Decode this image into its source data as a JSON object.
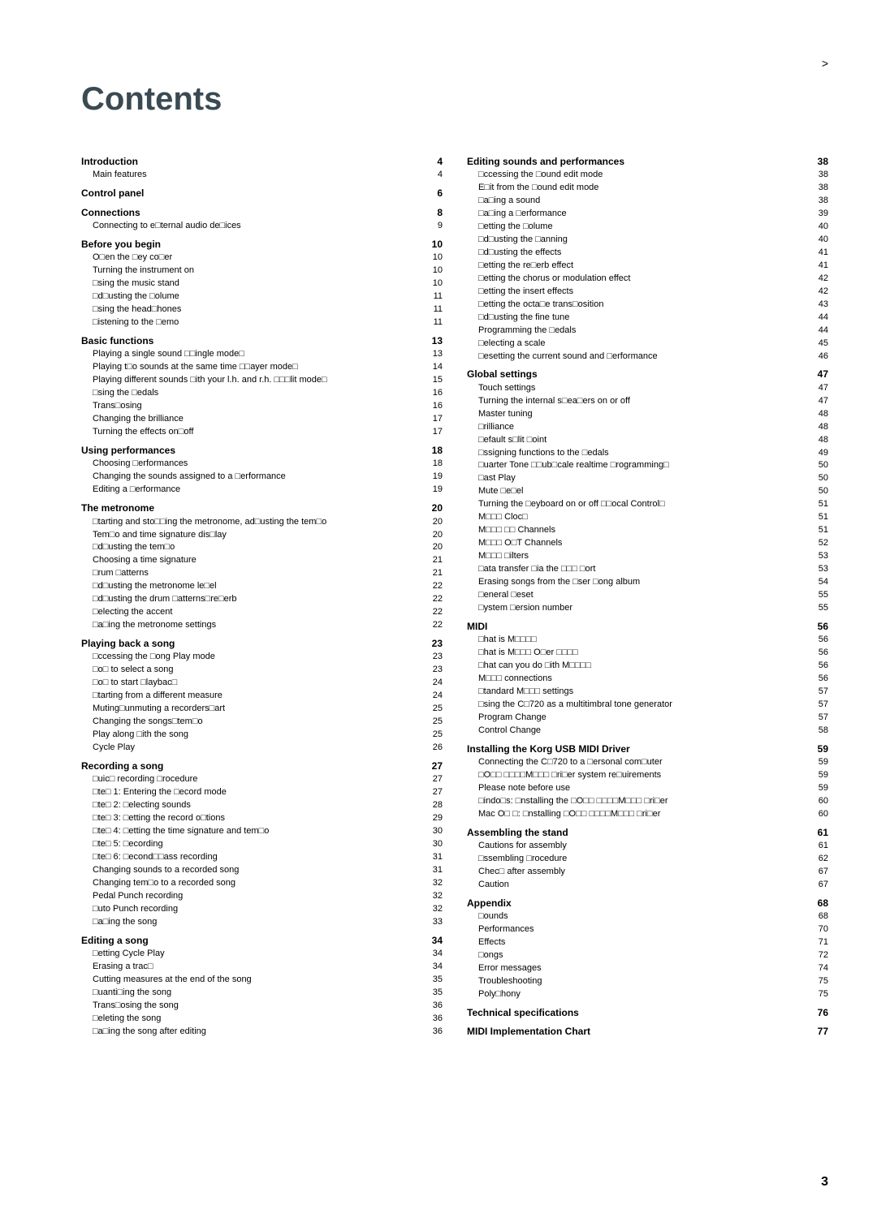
{
  "title": "Contents",
  "bracket": ">",
  "pageNumber": "3",
  "colors": {
    "heading": "#3a4a52",
    "text": "#000000",
    "background": "#ffffff"
  },
  "columns": [
    [
      {
        "t": "h",
        "l": "Introduction",
        "p": "4"
      },
      {
        "t": "s",
        "l": "Main features",
        "p": "4"
      },
      {
        "t": "h",
        "l": "Control panel",
        "p": "6"
      },
      {
        "t": "h",
        "l": "Connections",
        "p": "8"
      },
      {
        "t": "s",
        "l": "Connecting to e□ternal audio de□ices",
        "p": "9"
      },
      {
        "t": "h",
        "l": "Before you begin",
        "p": "10"
      },
      {
        "t": "s",
        "l": "O□en the □ey co□er",
        "p": "10"
      },
      {
        "t": "s",
        "l": "Turning the instrument on",
        "p": "10"
      },
      {
        "t": "s",
        "l": "□sing the music stand",
        "p": "10"
      },
      {
        "t": "s",
        "l": "□d□usting the □olume",
        "p": "11"
      },
      {
        "t": "s",
        "l": "□sing the head□hones",
        "p": "11"
      },
      {
        "t": "s",
        "l": "□istening to the □emo",
        "p": "11"
      },
      {
        "t": "h",
        "l": "Basic functions",
        "p": "13"
      },
      {
        "t": "s",
        "l": "Playing a single sound □□ingle mode□",
        "p": "13"
      },
      {
        "t": "s",
        "l": "Playing t□o sounds at the same time □□ayer mode□",
        "p": "14"
      },
      {
        "t": "s",
        "l": "Playing different sounds □ith your l.h. and r.h. □□□lit mode□",
        "p": "15"
      },
      {
        "t": "s",
        "l": "□sing the □edals",
        "p": "16"
      },
      {
        "t": "s",
        "l": "Trans□osing",
        "p": "16"
      },
      {
        "t": "s",
        "l": "Changing the brilliance",
        "p": "17"
      },
      {
        "t": "s",
        "l": "Turning the effects on□off",
        "p": "17"
      },
      {
        "t": "h",
        "l": "Using performances",
        "p": "18"
      },
      {
        "t": "s",
        "l": "Choosing □erformances",
        "p": "18"
      },
      {
        "t": "s",
        "l": "Changing the sounds assigned to a □erformance",
        "p": "19"
      },
      {
        "t": "s",
        "l": "Editing a □erformance",
        "p": "19"
      },
      {
        "t": "h",
        "l": "The metronome",
        "p": "20"
      },
      {
        "t": "s",
        "l": "□tarting and sto□□ing the metronome, ad□usting the tem□o",
        "p": "20"
      },
      {
        "t": "s",
        "l": "Tem□o and time signature dis□lay",
        "p": "20"
      },
      {
        "t": "s",
        "l": "□d□usting the tem□o",
        "p": "20"
      },
      {
        "t": "s",
        "l": "Choosing a time signature",
        "p": "21"
      },
      {
        "t": "s",
        "l": "□rum □atterns",
        "p": "21"
      },
      {
        "t": "s",
        "l": "□d□usting the metronome le□el",
        "p": "22"
      },
      {
        "t": "s",
        "l": "□d□usting the drum □atterns□re□erb",
        "p": "22"
      },
      {
        "t": "s",
        "l": "□electing the accent",
        "p": "22"
      },
      {
        "t": "s",
        "l": "□a□ing the metronome settings",
        "p": "22"
      },
      {
        "t": "h",
        "l": "Playing back a song",
        "p": "23"
      },
      {
        "t": "s",
        "l": "□ccessing the □ong Play mode",
        "p": "23"
      },
      {
        "t": "s",
        "l": "□o□ to select a song",
        "p": "23"
      },
      {
        "t": "s",
        "l": "□o□ to start □laybac□",
        "p": "24"
      },
      {
        "t": "s",
        "l": "□tarting from a different measure",
        "p": "24"
      },
      {
        "t": "s",
        "l": "Muting□unmuting a recorders□art",
        "p": "25"
      },
      {
        "t": "s",
        "l": "Changing the songs□tem□o",
        "p": "25"
      },
      {
        "t": "s",
        "l": "Play along □ith the song",
        "p": "25"
      },
      {
        "t": "s",
        "l": "Cycle Play",
        "p": "26"
      },
      {
        "t": "h",
        "l": "Recording a song",
        "p": "27"
      },
      {
        "t": "s",
        "l": "□uic□ recording □rocedure",
        "p": "27"
      },
      {
        "t": "s",
        "l": "□te□ 1: Entering the □ecord mode",
        "p": "27"
      },
      {
        "t": "s",
        "l": "□te□ 2: □electing sounds",
        "p": "28"
      },
      {
        "t": "s",
        "l": "□te□ 3: □etting the record o□tions",
        "p": "29"
      },
      {
        "t": "s",
        "l": "□te□ 4: □etting the time signature and tem□o",
        "p": "30"
      },
      {
        "t": "s",
        "l": "□te□ 5: □ecording",
        "p": "30"
      },
      {
        "t": "s",
        "l": "□te□ 6: □econd□□ass recording",
        "p": "31"
      },
      {
        "t": "s",
        "l": "Changing sounds to a recorded song",
        "p": "31"
      },
      {
        "t": "s",
        "l": "Changing tem□o to a recorded song",
        "p": "32"
      },
      {
        "t": "s",
        "l": "Pedal Punch recording",
        "p": "32"
      },
      {
        "t": "s",
        "l": "□uto Punch recording",
        "p": "32"
      },
      {
        "t": "s",
        "l": "□a□ing the song",
        "p": "33"
      },
      {
        "t": "h",
        "l": "Editing a song",
        "p": "34"
      },
      {
        "t": "s",
        "l": "□etting Cycle Play",
        "p": "34"
      },
      {
        "t": "s",
        "l": "Erasing a trac□",
        "p": "34"
      },
      {
        "t": "s",
        "l": "Cutting measures at the end of the song",
        "p": "35"
      },
      {
        "t": "s",
        "l": "□uanti□ing the song",
        "p": "35"
      },
      {
        "t": "s",
        "l": "Trans□osing the song",
        "p": "36"
      },
      {
        "t": "s",
        "l": "□eleting the song",
        "p": "36"
      },
      {
        "t": "s",
        "l": "□a□ing the song after editing",
        "p": "36"
      }
    ],
    [
      {
        "t": "h",
        "l": "Editing sounds and performances",
        "p": "38"
      },
      {
        "t": "s",
        "l": "□ccessing the □ound edit mode",
        "p": "38"
      },
      {
        "t": "s",
        "l": "E□it from the □ound edit mode",
        "p": "38"
      },
      {
        "t": "s",
        "l": "□a□ing a sound",
        "p": "38"
      },
      {
        "t": "s",
        "l": "□a□ing a □erformance",
        "p": "39"
      },
      {
        "t": "s",
        "l": "□etting the □olume",
        "p": "40"
      },
      {
        "t": "s",
        "l": "□d□usting the □anning",
        "p": "40"
      },
      {
        "t": "s",
        "l": "□d□usting the effects",
        "p": "41"
      },
      {
        "t": "s",
        "l": "□etting the re□erb effect",
        "p": "41"
      },
      {
        "t": "s",
        "l": "□etting the chorus or modulation effect",
        "p": "42"
      },
      {
        "t": "s",
        "l": "□etting the insert effects",
        "p": "42"
      },
      {
        "t": "s",
        "l": "□etting the octa□e trans□osition",
        "p": "43"
      },
      {
        "t": "s",
        "l": "□d□usting the fine tune",
        "p": "44"
      },
      {
        "t": "s",
        "l": "Programming the □edals",
        "p": "44"
      },
      {
        "t": "s",
        "l": "□electing a scale",
        "p": "45"
      },
      {
        "t": "s",
        "l": "□esetting the current sound and □erformance",
        "p": "46"
      },
      {
        "t": "h",
        "l": "Global settings",
        "p": "47"
      },
      {
        "t": "s",
        "l": "Touch settings",
        "p": "47"
      },
      {
        "t": "s",
        "l": "Turning the internal s□ea□ers on or off",
        "p": "47"
      },
      {
        "t": "s",
        "l": "Master tuning",
        "p": "48"
      },
      {
        "t": "s",
        "l": "□rilliance",
        "p": "48"
      },
      {
        "t": "s",
        "l": "□efault s□lit □oint",
        "p": "48"
      },
      {
        "t": "s",
        "l": "□ssigning functions to the □edals",
        "p": "49"
      },
      {
        "t": "s",
        "l": "□uarter Tone □□ub□cale realtime □rogramming□",
        "p": "50"
      },
      {
        "t": "s",
        "l": "□ast Play",
        "p": "50"
      },
      {
        "t": "s",
        "l": "Mute □e□el",
        "p": "50"
      },
      {
        "t": "s",
        "l": "Turning the □eyboard on or off □□ocal Control□",
        "p": "51"
      },
      {
        "t": "s",
        "l": "M□□□ Cloc□",
        "p": "51"
      },
      {
        "t": "s",
        "l": "M□□□ □□ Channels",
        "p": "51"
      },
      {
        "t": "s",
        "l": "M□□□ O□T Channels",
        "p": "52"
      },
      {
        "t": "s",
        "l": "M□□□ □ilters",
        "p": "53"
      },
      {
        "t": "s",
        "l": "□ata transfer □ia the □□□ □ort",
        "p": "53"
      },
      {
        "t": "s",
        "l": "Erasing songs from the □ser □ong album",
        "p": "54"
      },
      {
        "t": "s",
        "l": "□eneral □eset",
        "p": "55"
      },
      {
        "t": "s",
        "l": "□ystem □ersion number",
        "p": "55"
      },
      {
        "t": "h",
        "l": "MIDI",
        "p": "56"
      },
      {
        "t": "s",
        "l": "□hat is M□□□□",
        "p": "56"
      },
      {
        "t": "s",
        "l": "□hat is M□□□ O□er □□□□",
        "p": "56"
      },
      {
        "t": "s",
        "l": "□hat can you do □ith M□□□□",
        "p": "56"
      },
      {
        "t": "s",
        "l": "M□□□ connections",
        "p": "56"
      },
      {
        "t": "s",
        "l": "□tandard M□□□ settings",
        "p": "57"
      },
      {
        "t": "s",
        "l": "□sing the C□720 as a multitimbral tone generator",
        "p": "57"
      },
      {
        "t": "s",
        "l": "Program Change",
        "p": "57"
      },
      {
        "t": "s",
        "l": "Control Change",
        "p": "58"
      },
      {
        "t": "h",
        "l": "Installing the Korg USB MIDI Driver",
        "p": "59"
      },
      {
        "t": "s",
        "l": "Connecting the C□720 to a □ersonal com□uter",
        "p": "59"
      },
      {
        "t": "s",
        "l": "□O□□ □□□□M□□□ □ri□er system re□uirements",
        "p": "59"
      },
      {
        "t": "s",
        "l": "Please note before use",
        "p": "59"
      },
      {
        "t": "s",
        "l": "□indo□s: □nstalling the □O□□ □□□□M□□□ □ri□er",
        "p": "60"
      },
      {
        "t": "s",
        "l": "Mac O□ □: □nstalling □O□□ □□□□M□□□ □ri□er",
        "p": "60"
      },
      {
        "t": "h",
        "l": "Assembling the stand",
        "p": "61"
      },
      {
        "t": "s",
        "l": "Cautions for assembly",
        "p": "61"
      },
      {
        "t": "s",
        "l": "□ssembling □rocedure",
        "p": "62"
      },
      {
        "t": "s",
        "l": "Chec□ after assembly",
        "p": "67"
      },
      {
        "t": "s",
        "l": "Caution",
        "p": "67"
      },
      {
        "t": "h",
        "l": "Appendix",
        "p": "68"
      },
      {
        "t": "s",
        "l": "□ounds",
        "p": "68"
      },
      {
        "t": "s",
        "l": "Performances",
        "p": "70"
      },
      {
        "t": "s",
        "l": "Effects",
        "p": "71"
      },
      {
        "t": "s",
        "l": "□ongs",
        "p": "72"
      },
      {
        "t": "s",
        "l": "Error messages",
        "p": "74"
      },
      {
        "t": "s",
        "l": "Troubleshooting",
        "p": "75"
      },
      {
        "t": "s",
        "l": "Poly□hony",
        "p": "75"
      },
      {
        "t": "h",
        "l": "Technical specifications",
        "p": "76"
      },
      {
        "t": "h",
        "l": "MIDI Implementation Chart",
        "p": "77"
      }
    ]
  ]
}
